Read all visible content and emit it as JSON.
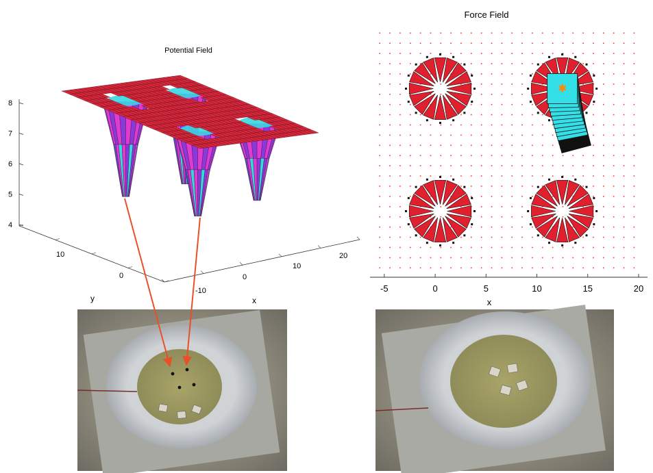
{
  "chart_data": [
    {
      "type": "surface",
      "title": "Potential Field",
      "xlabel": "x",
      "ylabel": "y",
      "zlabel": "",
      "z_ticks": [
        4,
        5,
        6,
        7,
        8
      ],
      "x_ticks": [
        -10,
        0,
        10,
        20
      ],
      "y_ticks": [
        0,
        10
      ],
      "zlim": [
        4,
        8
      ],
      "plateau_level": 8,
      "wells": [
        {
          "x": -4,
          "y": 12,
          "depth": 4.9
        },
        {
          "x": 12,
          "y": 12,
          "depth": 5.2
        },
        {
          "x": -4,
          "y": 0,
          "depth": 4.7
        },
        {
          "x": 12,
          "y": 0,
          "depth": 5.1
        }
      ],
      "colors": {
        "plateau": "#d8263a",
        "well_upper": "#e23ad0",
        "well_mid": "#8a3ad8",
        "well_lower": "#39d6e0"
      }
    },
    {
      "type": "quiver",
      "title": "Force Field",
      "xlabel": "x",
      "ylabel": "",
      "x_ticks": [
        -5,
        0,
        5,
        10,
        15,
        20
      ],
      "xlim": [
        -6,
        20
      ],
      "ylim": [
        -2,
        22
      ],
      "attractors": [
        {
          "x": 0.5,
          "y": 16
        },
        {
          "x": 12.5,
          "y": 16
        },
        {
          "x": 0.5,
          "y": 4
        },
        {
          "x": 12.5,
          "y": 4
        }
      ],
      "part_trajectory_start": {
        "x": 13.5,
        "y": 11.5
      },
      "part_trajectory_end": {
        "x": 12.5,
        "y": 16
      },
      "colors": {
        "arrow": "#e0202e",
        "dot": "#ff3333",
        "part": "#33e0e8",
        "marker": "#ff8800"
      }
    }
  ],
  "photos": {
    "left": {
      "wells_visible": 4,
      "parts_visible": 3
    },
    "right": {
      "parts_visible": 4
    }
  }
}
